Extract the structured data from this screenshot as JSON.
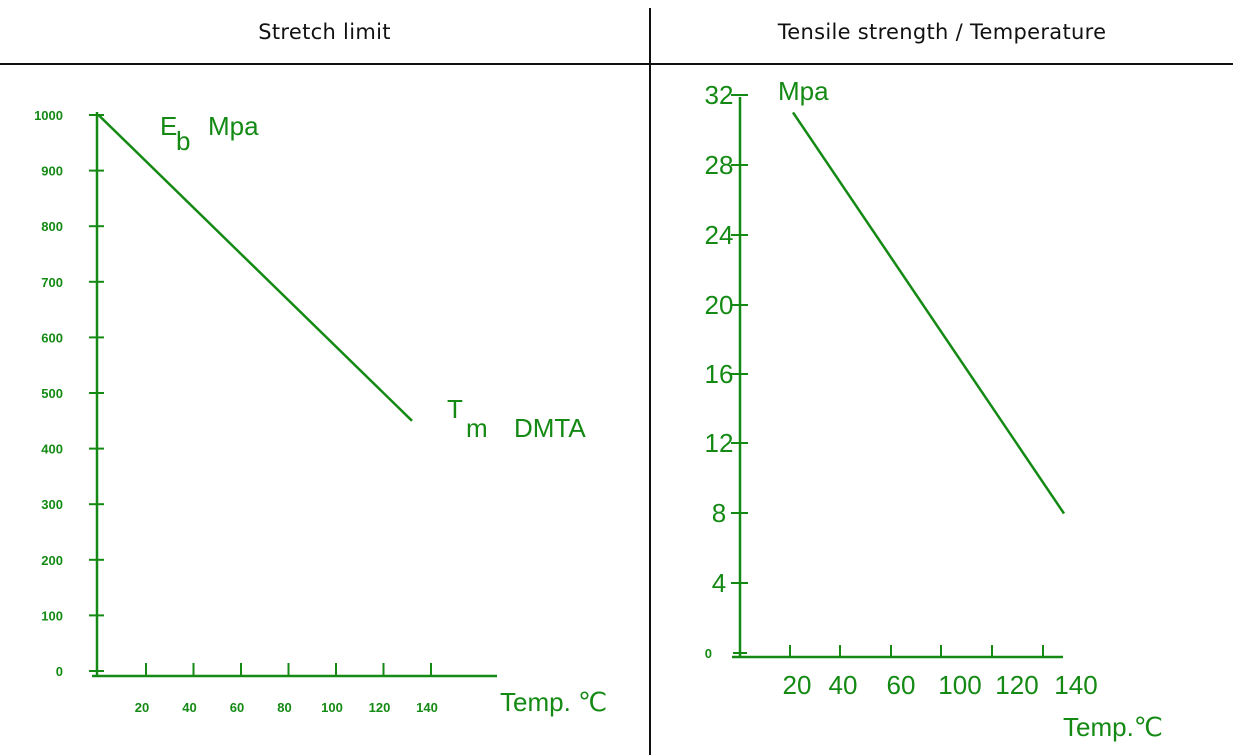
{
  "panels": {
    "left_title": "Stretch limit",
    "right_title": "Tensile strength / Temperature"
  },
  "colors": {
    "plot": "#148a14",
    "rule": "#111111"
  },
  "chart_data": [
    {
      "type": "line",
      "title": "Stretch limit",
      "ylabel_main": "E",
      "ylabel_sub": "b",
      "ylabel_unit": "Mpa",
      "xlabel": "Temp. ℃",
      "annotation_main": "T",
      "annotation_sub": "m",
      "annotation_text": "DMTA",
      "xlim": [
        0,
        160
      ],
      "ylim": [
        0,
        1000
      ],
      "x_ticks": [
        20,
        40,
        60,
        80,
        100,
        120,
        140
      ],
      "x_tick_labels": [
        "20",
        "40",
        "60",
        "80",
        "100",
        "120",
        "140"
      ],
      "y_ticks": [
        0,
        100,
        200,
        300,
        400,
        500,
        600,
        700,
        800,
        900,
        1000
      ],
      "y_tick_labels": [
        "0",
        "100",
        "200",
        "300",
        "400",
        "500",
        "600",
        "700",
        "800",
        "900",
        "1000"
      ],
      "series": [
        {
          "x": [
            0,
            132
          ],
          "y": [
            1000,
            450
          ]
        }
      ],
      "grid": false
    },
    {
      "type": "line",
      "title": "Tensile strength / Temperature",
      "ylabel": "Mpa",
      "xlabel": "Temp.℃",
      "y_ticks": [
        0,
        4,
        8,
        12,
        16,
        20,
        24,
        28,
        32
      ],
      "y_tick_labels": [
        "0",
        "4",
        "8",
        "12",
        "16",
        "20",
        "24",
        "28",
        "32"
      ],
      "x_tick_labels": [
        "20",
        "40",
        "60",
        "100",
        "120",
        "140"
      ],
      "ylim": [
        0,
        32
      ],
      "series": [
        {
          "x": [
            20,
            140
          ],
          "y": [
            31,
            8
          ]
        }
      ],
      "grid": false
    }
  ]
}
